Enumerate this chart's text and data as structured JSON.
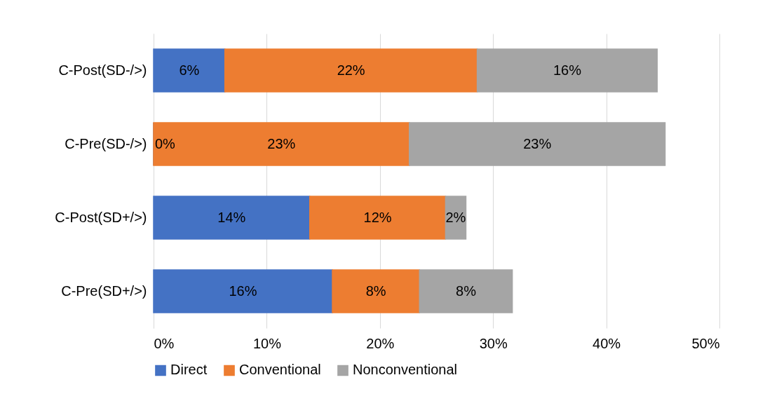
{
  "chart_data": {
    "type": "bar",
    "orientation": "horizontal",
    "stacked": true,
    "categories": [
      "C-Post(SD-/>)",
      "C-Pre(SD-/>)",
      "C-Post(SD+/>)",
      "C-Pre(SD+/>)"
    ],
    "series": [
      {
        "name": "Direct",
        "color": "#4472c4",
        "values": [
          6.3,
          0,
          13.8,
          15.8
        ],
        "value_labels": [
          "6%",
          "0%",
          "14%",
          "16%"
        ]
      },
      {
        "name": "Conventional",
        "color": "#ed7d31",
        "values": [
          22.3,
          22.6,
          12.0,
          7.7
        ],
        "value_labels": [
          "22%",
          "23%",
          "12%",
          "8%"
        ]
      },
      {
        "name": "Nonconventional",
        "color": "#a5a5a5",
        "values": [
          15.9,
          22.6,
          1.8,
          8.2
        ],
        "value_labels": [
          "16%",
          "23%",
          "2%",
          "8%"
        ]
      }
    ],
    "xlim": [
      0,
      50
    ],
    "xticks": [
      {
        "value": 0,
        "label": "0%"
      },
      {
        "value": 10,
        "label": "10%"
      },
      {
        "value": 20,
        "label": "20%"
      },
      {
        "value": 30,
        "label": "30%"
      },
      {
        "value": 40,
        "label": "40%"
      },
      {
        "value": 50,
        "label": "50%"
      }
    ],
    "grid": "x",
    "legend": "bottom"
  }
}
